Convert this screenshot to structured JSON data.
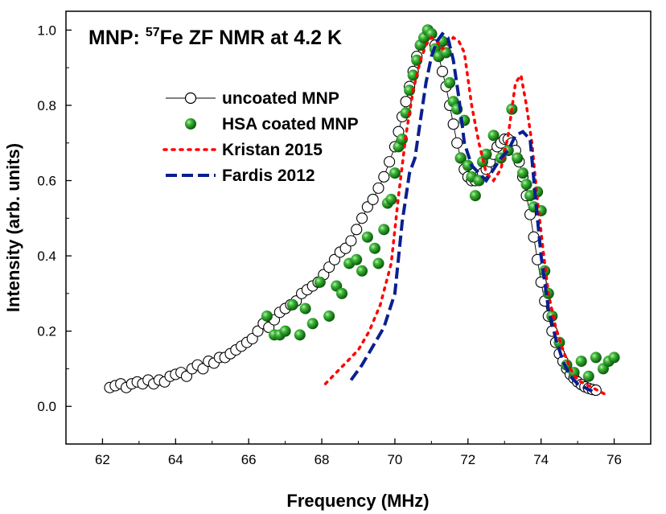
{
  "chart_data": {
    "type": "scatter",
    "title_prefix": "MNP: ",
    "title_isotope_mass": "57",
    "title_rest": "Fe ZF NMR at 4.2 K",
    "xlabel": "Frequency (MHz)",
    "ylabel": "Intensity (arb. units)",
    "xlim": [
      61,
      77
    ],
    "ylim": [
      -0.1,
      1.05
    ],
    "xticks": [
      62,
      64,
      66,
      68,
      70,
      72,
      74,
      76
    ],
    "yticks": [
      0.0,
      0.2,
      0.4,
      0.6,
      0.8,
      1.0
    ],
    "xtick_labels": [
      "62",
      "64",
      "66",
      "68",
      "70",
      "72",
      "74",
      "76"
    ],
    "ytick_labels": [
      "0.0",
      "0.2",
      "0.4",
      "0.6",
      "0.8",
      "1.0"
    ],
    "legend_position": "upper-left",
    "series": [
      {
        "name": "uncoated MNP",
        "style": "open-circle-line",
        "color": "#000000",
        "x": [
          62.2,
          62.35,
          62.5,
          62.65,
          62.8,
          62.95,
          63.1,
          63.25,
          63.4,
          63.55,
          63.7,
          63.85,
          64.0,
          64.15,
          64.3,
          64.45,
          64.6,
          64.75,
          64.9,
          65.05,
          65.2,
          65.35,
          65.5,
          65.65,
          65.8,
          65.95,
          66.1,
          66.25,
          66.4,
          66.55,
          66.7,
          66.85,
          67.0,
          67.15,
          67.3,
          67.45,
          67.6,
          67.75,
          67.9,
          68.05,
          68.2,
          68.35,
          68.5,
          68.65,
          68.8,
          68.95,
          69.1,
          69.25,
          69.4,
          69.55,
          69.7,
          69.85,
          70.0,
          70.1,
          70.2,
          70.3,
          70.4,
          70.5,
          70.6,
          70.7,
          70.8,
          70.9,
          71.0,
          71.1,
          71.2,
          71.3,
          71.4,
          71.5,
          71.6,
          71.7,
          71.8,
          71.9,
          72.0,
          72.1,
          72.2,
          72.3,
          72.4,
          72.5,
          72.6,
          72.7,
          72.8,
          72.9,
          73.0,
          73.1,
          73.2,
          73.3,
          73.4,
          73.5,
          73.6,
          73.7,
          73.8,
          73.9,
          74.0,
          74.1,
          74.2,
          74.3,
          74.4,
          74.5,
          74.6,
          74.7,
          74.8,
          74.9,
          75.0,
          75.1,
          75.2,
          75.3,
          75.4,
          75.5
        ],
        "y": [
          0.05,
          0.055,
          0.06,
          0.05,
          0.06,
          0.065,
          0.06,
          0.07,
          0.06,
          0.07,
          0.065,
          0.08,
          0.085,
          0.09,
          0.08,
          0.1,
          0.11,
          0.1,
          0.12,
          0.115,
          0.13,
          0.13,
          0.14,
          0.15,
          0.16,
          0.17,
          0.18,
          0.2,
          0.22,
          0.21,
          0.23,
          0.25,
          0.26,
          0.27,
          0.28,
          0.3,
          0.31,
          0.32,
          0.33,
          0.35,
          0.37,
          0.39,
          0.41,
          0.42,
          0.44,
          0.47,
          0.5,
          0.53,
          0.55,
          0.58,
          0.61,
          0.65,
          0.69,
          0.73,
          0.77,
          0.81,
          0.85,
          0.89,
          0.93,
          0.96,
          0.98,
          1.0,
          0.99,
          0.96,
          0.93,
          0.89,
          0.85,
          0.8,
          0.75,
          0.7,
          0.66,
          0.63,
          0.61,
          0.6,
          0.6,
          0.61,
          0.62,
          0.63,
          0.65,
          0.67,
          0.69,
          0.7,
          0.71,
          0.71,
          0.7,
          0.68,
          0.65,
          0.61,
          0.56,
          0.51,
          0.45,
          0.39,
          0.33,
          0.28,
          0.24,
          0.2,
          0.17,
          0.14,
          0.12,
          0.1,
          0.085,
          0.075,
          0.065,
          0.058,
          0.052,
          0.048,
          0.045,
          0.043
        ]
      },
      {
        "name": "HSA coated MNP",
        "style": "green-ball",
        "color": "#1b8a1b",
        "x": [
          66.5,
          66.7,
          66.85,
          67.0,
          67.2,
          67.4,
          67.55,
          67.75,
          67.95,
          68.2,
          68.4,
          68.55,
          68.75,
          68.95,
          69.1,
          69.25,
          69.45,
          69.55,
          69.7,
          69.8,
          69.9,
          70.0,
          70.1,
          70.2,
          70.3,
          70.4,
          70.5,
          70.6,
          70.7,
          70.8,
          70.9,
          71.0,
          71.1,
          71.2,
          71.3,
          71.4,
          71.5,
          71.6,
          71.7,
          71.8,
          71.9,
          72.0,
          72.1,
          72.2,
          72.3,
          72.4,
          72.5,
          72.7,
          72.9,
          73.1,
          73.2,
          73.35,
          73.5,
          73.6,
          73.7,
          73.8,
          73.9,
          74.0,
          74.1,
          74.2,
          74.3,
          74.5,
          74.7,
          74.9,
          75.1,
          75.3,
          75.5,
          75.7,
          75.85,
          76.0
        ],
        "y": [
          0.24,
          0.19,
          0.19,
          0.2,
          0.27,
          0.19,
          0.26,
          0.22,
          0.33,
          0.24,
          0.32,
          0.3,
          0.38,
          0.39,
          0.36,
          0.45,
          0.42,
          0.38,
          0.47,
          0.54,
          0.55,
          0.62,
          0.69,
          0.71,
          0.78,
          0.84,
          0.88,
          0.92,
          0.96,
          0.98,
          1.0,
          0.99,
          0.95,
          0.93,
          0.97,
          0.94,
          0.86,
          0.81,
          0.79,
          0.66,
          0.76,
          0.64,
          0.61,
          0.56,
          0.6,
          0.65,
          0.67,
          0.72,
          0.66,
          0.68,
          0.79,
          0.66,
          0.62,
          0.59,
          0.56,
          0.53,
          0.57,
          0.52,
          0.36,
          0.3,
          0.24,
          0.17,
          0.11,
          0.09,
          0.12,
          0.08,
          0.13,
          0.1,
          0.12,
          0.13
        ]
      },
      {
        "name": "Kristan 2015",
        "style": "red-dotted",
        "color": "#ff0000",
        "x": [
          68.1,
          68.4,
          68.7,
          69.0,
          69.3,
          69.6,
          69.9,
          70.1,
          70.3,
          70.5,
          70.7,
          70.85,
          71.0,
          71.15,
          71.3,
          71.45,
          71.6,
          71.75,
          71.9,
          72.1,
          72.3,
          72.5,
          72.7,
          72.9,
          73.1,
          73.3,
          73.45,
          73.6,
          73.75,
          73.9,
          74.05,
          74.2,
          74.4,
          74.6,
          74.8,
          75.0,
          75.2,
          75.4,
          75.6,
          75.8
        ],
        "y": [
          0.06,
          0.09,
          0.12,
          0.15,
          0.2,
          0.27,
          0.38,
          0.56,
          0.72,
          0.84,
          0.92,
          0.96,
          0.98,
          0.97,
          0.95,
          0.96,
          0.98,
          0.97,
          0.94,
          0.8,
          0.7,
          0.62,
          0.6,
          0.63,
          0.72,
          0.86,
          0.88,
          0.8,
          0.7,
          0.55,
          0.42,
          0.3,
          0.21,
          0.15,
          0.1,
          0.07,
          0.06,
          0.05,
          0.04,
          0.03
        ]
      },
      {
        "name": "Fardis 2012",
        "style": "blue-dashed",
        "color": "#0b1f8f",
        "x": [
          68.8,
          69.1,
          69.4,
          69.7,
          70.0,
          70.2,
          70.4,
          70.55,
          70.7,
          70.85,
          71.0,
          71.15,
          71.3,
          71.45,
          71.6,
          71.75,
          71.9,
          72.1,
          72.3,
          72.5,
          72.7,
          72.9,
          73.1,
          73.3,
          73.5,
          73.7,
          73.85,
          74.0,
          74.2,
          74.4,
          74.6,
          74.8,
          75.0,
          75.2,
          75.4
        ],
        "y": [
          0.07,
          0.11,
          0.16,
          0.21,
          0.3,
          0.49,
          0.62,
          0.66,
          0.76,
          0.86,
          0.93,
          0.97,
          0.99,
          0.98,
          0.92,
          0.82,
          0.7,
          0.64,
          0.62,
          0.6,
          0.63,
          0.66,
          0.68,
          0.72,
          0.73,
          0.71,
          0.55,
          0.4,
          0.26,
          0.18,
          0.12,
          0.08,
          0.06,
          0.05,
          0.04
        ]
      }
    ]
  }
}
